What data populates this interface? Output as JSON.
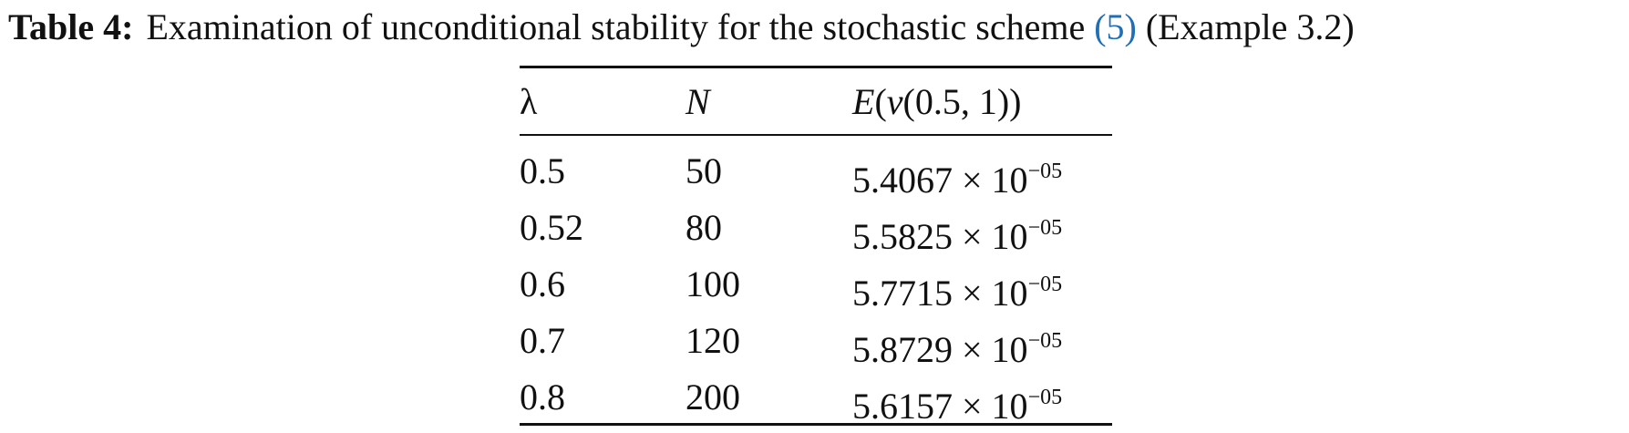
{
  "caption": {
    "label": "Table 4:",
    "text": "Examination of unconditional stability for the stochastic scheme",
    "reference": "(5)",
    "note": "(Example 3.2)"
  },
  "table": {
    "header": {
      "lambda": "λ",
      "n": "N",
      "e": [
        "E",
        "(",
        "v",
        "(0.5, 1))"
      ]
    },
    "rows": [
      {
        "lambda": "0.5",
        "n": "50",
        "e": {
          "coefficient": "5.4067 × 10",
          "exponent": "−05"
        }
      },
      {
        "lambda": "0.52",
        "n": "80",
        "e": {
          "coefficient": "5.5825 × 10",
          "exponent": "−05"
        }
      },
      {
        "lambda": "0.6",
        "n": "100",
        "e": {
          "coefficient": "5.7715 × 10",
          "exponent": "−05"
        }
      },
      {
        "lambda": "0.7",
        "n": "120",
        "e": {
          "coefficient": "5.8729 × 10",
          "exponent": "−05"
        }
      },
      {
        "lambda": "0.8",
        "n": "200",
        "e": {
          "coefficient": "5.6157 × 10",
          "exponent": "−05"
        }
      }
    ]
  }
}
